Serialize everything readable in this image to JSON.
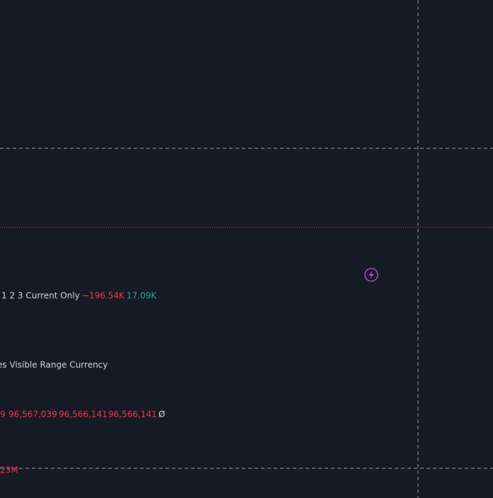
{
  "volume_pane": {
    "legend": "1 2 3 Current Only",
    "value_down": "−196.54K",
    "value_up": "17.09K"
  },
  "range_pane": {
    "legend": "es Visible Range Currency"
  },
  "price_pane": {
    "prefix": "9",
    "values": [
      "96,567,039",
      "96,566,141",
      "96,566,141"
    ],
    "suffix": "Ø"
  },
  "bottom_pane": {
    "legend": "23M"
  }
}
